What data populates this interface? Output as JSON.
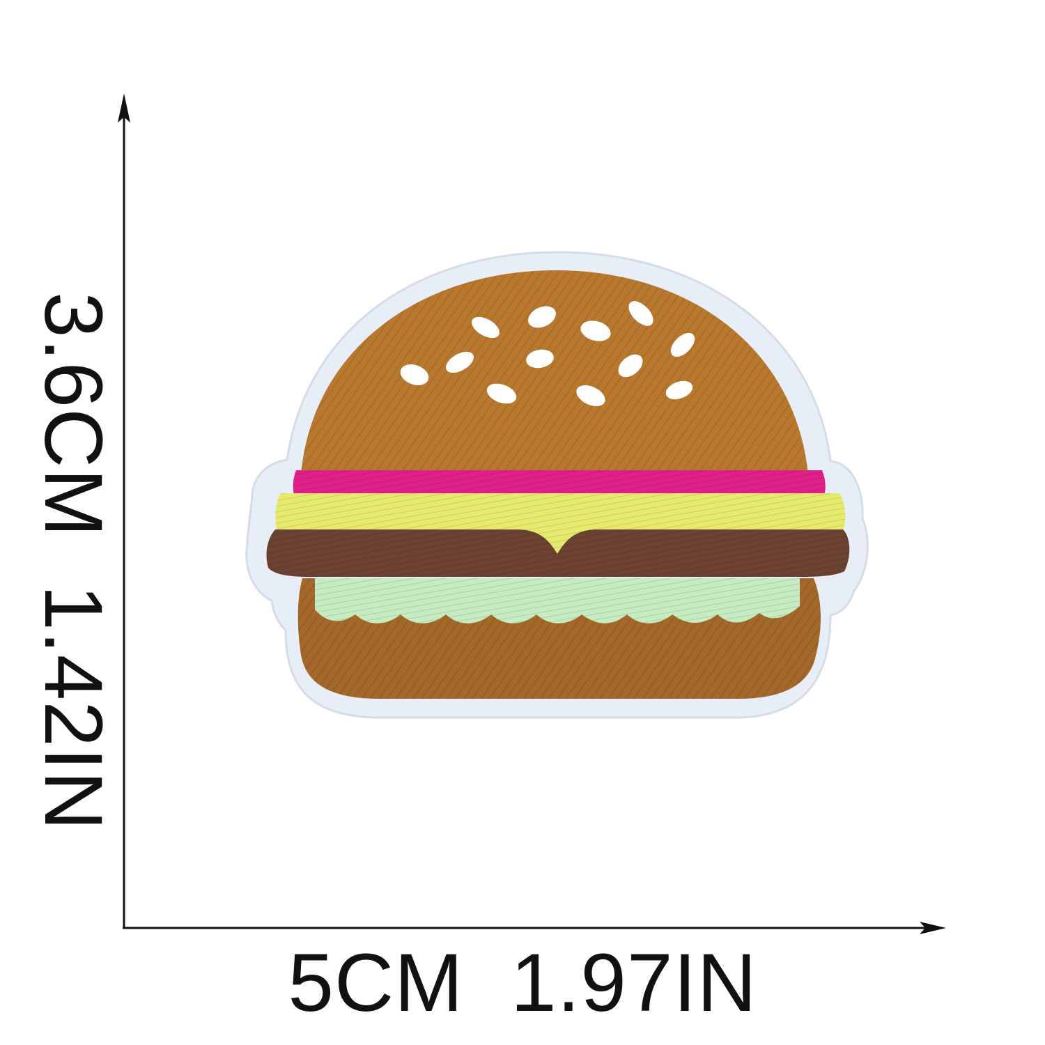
{
  "dimensions": {
    "width_label": "5CM  1.97IN",
    "height_label": "3.6CM  1.42IN"
  },
  "product": {
    "subject": "hamburger-embroidered-patch"
  },
  "colors": {
    "background": "#ffffff",
    "axis": "#111111",
    "felt_border": "#e8eef7",
    "bun": "#b8782e",
    "bun_dark": "#a4682a",
    "sesame": "#ffffff",
    "ham": "#e0208a",
    "cheese": "#e6ea6c",
    "patty": "#6b4131",
    "lettuce": "#c6ecc2"
  }
}
